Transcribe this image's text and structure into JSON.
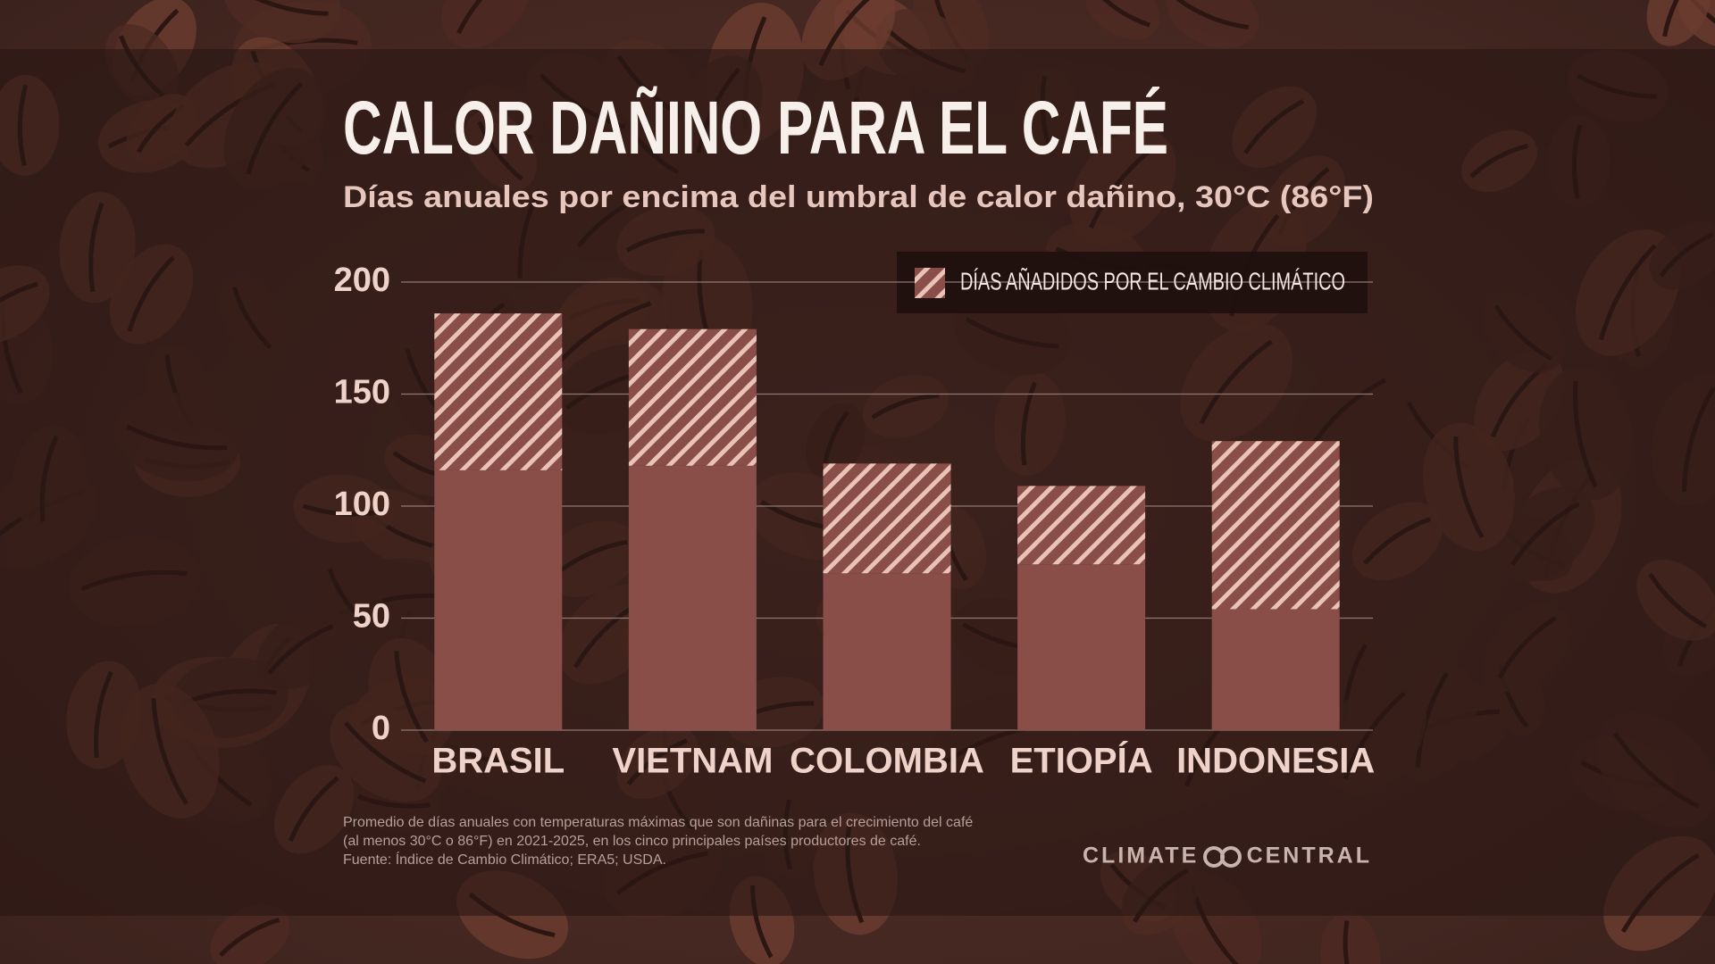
{
  "chart_data": {
    "type": "stacked-bar",
    "title": "CALOR DAÑINO PARA EL CAFÉ",
    "subtitle": "Días anuales por encima del umbral de calor dañino, 30°C (86°F)",
    "categories": [
      "BRASIL",
      "VIETNAM",
      "COLOMBIA",
      "ETIOPÍA",
      "INDONESIA"
    ],
    "series": [
      {
        "color": "#8a4e48",
        "values": [
          116,
          118,
          70,
          74,
          54
        ]
      },
      {
        "name": "DÍAS AÑADIDOS POR EL CAMBIO CLIMÁTICO",
        "color": "#e9c3b8",
        "hatch": true,
        "values": [
          70,
          61,
          49,
          35,
          75
        ]
      }
    ],
    "ylim": [
      0,
      200
    ],
    "yticks": [
      0,
      50,
      100,
      150,
      200
    ],
    "grid": true,
    "legend": "top-right",
    "notes": [
      "Promedio de días anuales con temperaturas máximas que son dañinas para el crecimiento del café",
      "(al menos 30°C o 86°F) en 2021-2025, en los cinco principales países productores de café.",
      "Fuente: Índice de Cambio Climático; ERA5; USDA."
    ],
    "brand": [
      "CLIMATE",
      "CENTRAL"
    ]
  }
}
